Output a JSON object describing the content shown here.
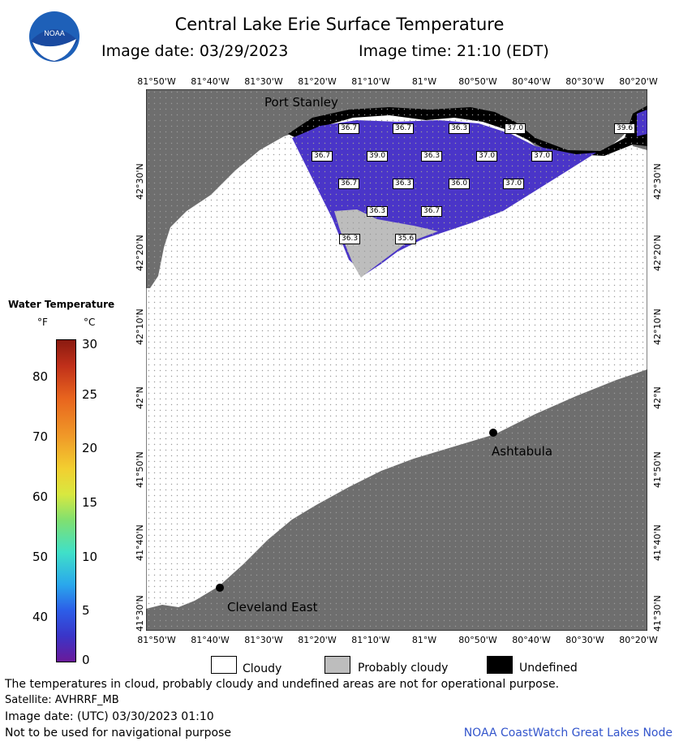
{
  "header": {
    "title": "Central Lake Erie Surface Temperature",
    "image_date": "Image date: 03/29/2023",
    "image_time": "Image time: 21:10 (EDT)"
  },
  "map": {
    "lon_ticks": [
      "81°50'W",
      "81°40'W",
      "81°30'W",
      "81°20'W",
      "81°10'W",
      "81°W",
      "80°50'W",
      "80°40'W",
      "80°30'W",
      "80°20'W"
    ],
    "lat_ticks": [
      "42°30'N",
      "42°20'N",
      "42°10'N",
      "42°N",
      "41°50'N",
      "41°40'N",
      "41°30'N"
    ],
    "places": {
      "port_stanley": "Port Stanley",
      "ashtabula": "Ashtabula",
      "cleveland_east": "Cleveland East"
    },
    "temps": [
      "36.7",
      "36.7",
      "36.3",
      "37.0",
      "39.6",
      "36.7",
      "39.0",
      "36.3",
      "37.0",
      "37.0",
      "36.7",
      "36.3",
      "36.0",
      "37.0",
      "36.3",
      "36.7",
      "36.3",
      "35.6"
    ],
    "colors": {
      "land": "#6e6e6e",
      "cloud": "#ffffff",
      "prob_cloud": "#bdbdbd",
      "undefined": "#000000",
      "water": "#4a35c8"
    }
  },
  "legend": {
    "title": "Water Temperature",
    "unit_f": "°F",
    "unit_c": "°C",
    "f_labels": [
      "80",
      "70",
      "60",
      "50",
      "40"
    ],
    "c_labels": [
      "30",
      "25",
      "20",
      "15",
      "10",
      "5",
      "0"
    ]
  },
  "key": {
    "cloudy": "Cloudy",
    "probably_cloudy": "Probably cloudy",
    "undefined": "Undefined"
  },
  "footer": {
    "note": "The temperatures in cloud, probably cloudy and undefined areas are not for operational purpose.",
    "satellite": "Satellite: AVHRRF_MB",
    "utc_date": "Image date: (UTC) 03/30/2023  01:10",
    "nav": "Not to be used for navigational purpose",
    "credit": "NOAA CoastWatch Great Lakes Node"
  }
}
